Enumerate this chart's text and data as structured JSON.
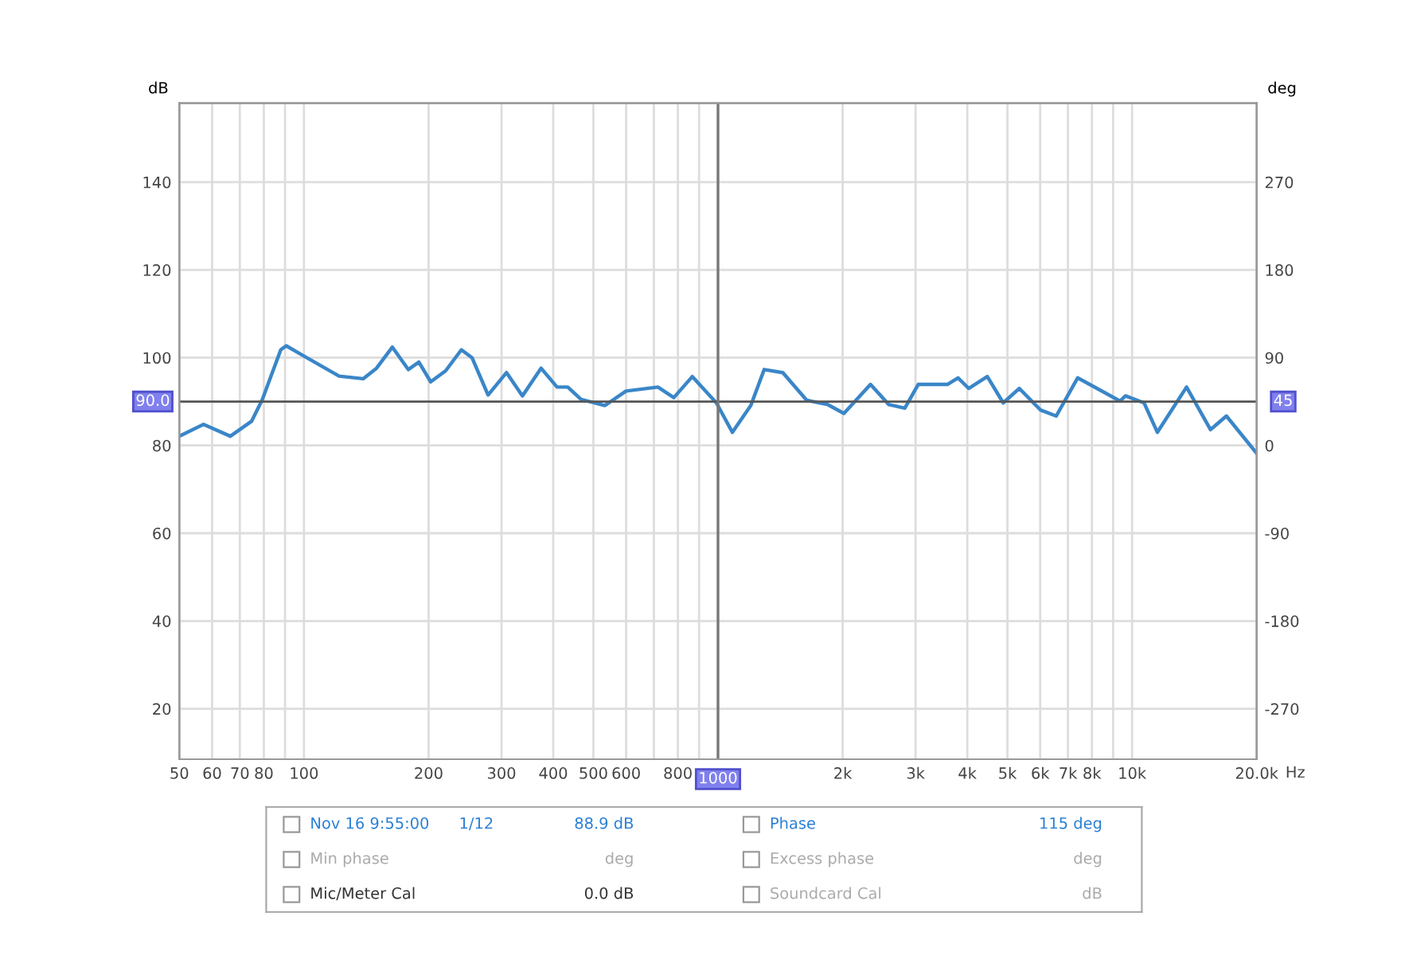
{
  "chart_data": {
    "type": "line",
    "ylabel": "dB",
    "y2label": "deg",
    "xlabel": "Hz",
    "log": "x",
    "grid": true,
    "x": [
      50,
      57.2,
      66.4,
      74.7,
      79.2,
      87.9,
      90.6,
      99,
      121.6,
      139,
      149.7,
      163.5,
      178.6,
      189.4,
      202.3,
      219.8,
      240,
      254.6,
      278.4,
      308.5,
      337,
      373.8,
      408.5,
      433.6,
      467,
      533,
      599.6,
      716,
      782,
      867,
      991,
      1083,
      1200,
      1293,
      1434,
      1638,
      1843,
      2014,
      2335,
      2586,
      2826,
      3045,
      3581,
      3800,
      4031,
      4471,
      4885,
      5340,
      6007,
      6559,
      7389,
      8564,
      9355,
      9638,
      10690,
      11510,
      13540,
      15470,
      16900,
      20000
    ],
    "series": [
      {
        "color": "#3a86c8",
        "values": [
          82.1,
          84.8,
          82.1,
          85.5,
          90.3,
          101.8,
          102.7,
          100.6,
          95.8,
          95.2,
          97.6,
          102.4,
          97.3,
          99,
          94.5,
          97,
          101.8,
          100,
          91.5,
          96.6,
          91.3,
          97.6,
          93.3,
          93.3,
          90.5,
          89.1,
          92.4,
          93.3,
          90.9,
          95.7,
          89.7,
          83,
          89.1,
          97.3,
          96.6,
          90.3,
          89.3,
          87.3,
          93.9,
          89.3,
          88.5,
          93.9,
          93.9,
          95.4,
          93,
          95.7,
          89.7,
          93,
          88.1,
          86.7,
          95.4,
          92.1,
          90.1,
          91.3,
          89.7,
          83,
          93.3,
          83.6,
          86.7,
          78.2
        ]
      }
    ],
    "xlim": [
      50,
      20000
    ],
    "xticks": [
      50,
      60,
      70,
      80,
      {
        "value": 90,
        "label": null
      },
      100,
      200,
      300,
      400,
      500,
      600,
      {
        "value": 700,
        "label": null
      },
      800,
      {
        "value": 900,
        "label": null
      },
      {
        "value": 1000,
        "label": null
      },
      {
        "value": 2000,
        "label": "2k"
      },
      {
        "value": 3000,
        "label": "3k"
      },
      {
        "value": 4000,
        "label": "4k"
      },
      {
        "value": 5000,
        "label": "5k"
      },
      {
        "value": 6000,
        "label": "6k"
      },
      {
        "value": 7000,
        "label": "7k"
      },
      {
        "value": 8000,
        "label": "8k"
      },
      {
        "value": 9000,
        "label": null
      },
      {
        "value": 10000,
        "label": "10k"
      },
      {
        "value": 20000,
        "label": "20.0k"
      }
    ],
    "ylim": [
      8.5,
      158
    ],
    "yticks": [
      20,
      40,
      60,
      80,
      100,
      120,
      140
    ],
    "y2lim": [
      -321.75,
      351
    ],
    "y2ticks": [
      -270,
      -180,
      -90,
      0,
      90,
      180,
      270
    ],
    "ref_lines": [
      {
        "axis": "y",
        "value": 90,
        "label": "90.0",
        "color": "#555555"
      },
      {
        "axis": "x",
        "value": 1000,
        "label": "1000",
        "color": "#777777"
      }
    ],
    "annotations": [
      {
        "text": "45",
        "x": 20000,
        "y": 90
      },
      "Nov 16 9:55:00",
      "1/12",
      "88.9 dB",
      "Phase",
      "115 deg",
      "Min phase",
      "deg",
      "Excess phase",
      "deg",
      "Mic/Meter Cal",
      "0.0 dB",
      "Soundcard Cal",
      "dB"
    ]
  }
}
